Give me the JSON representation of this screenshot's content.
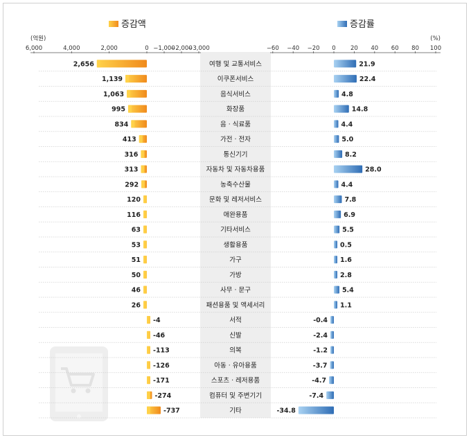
{
  "legend": {
    "left_label": "증감액",
    "right_label": "증감률",
    "left_unit": "(억원)",
    "right_unit": "(%)"
  },
  "colors": {
    "left_bar": "#f08a1c",
    "left_bar_light": "#ffd24a",
    "right_bar": "#2f6db5",
    "right_bar_light": "#a9d2f2",
    "center_band": "#eeeeee",
    "icon": "#eeeeee"
  },
  "background_icon": "shopping-cart-tablet-icon",
  "chart_data": [
    {
      "type": "bar",
      "orientation": "horizontal",
      "series": [
        {
          "name": "증감액",
          "values": [
            2656,
            1139,
            1063,
            995,
            834,
            413,
            316,
            313,
            292,
            120,
            116,
            63,
            53,
            51,
            50,
            46,
            26,
            -4,
            -46,
            -113,
            -126,
            -171,
            -274,
            -737
          ]
        }
      ],
      "value_labels": [
        "2,656",
        "1,139",
        "1,063",
        "995",
        "834",
        "413",
        "316",
        "313",
        "292",
        "120",
        "116",
        "63",
        "53",
        "51",
        "50",
        "46",
        "26",
        "-4",
        "-46",
        "-113",
        "-126",
        "-171",
        "-274",
        "-737"
      ],
      "axis": {
        "ticks": [
          6000,
          4000,
          2000,
          0,
          -1000,
          -2000,
          -3000
        ],
        "tick_labels": [
          "6,000",
          "4,000",
          "2,000",
          "0",
          "−1,000",
          "−2,000",
          "−3,000"
        ],
        "reversed": true
      }
    },
    {
      "type": "bar",
      "orientation": "horizontal",
      "series": [
        {
          "name": "증감률",
          "values": [
            21.9,
            22.4,
            4.8,
            14.8,
            4.4,
            5.0,
            8.2,
            28.0,
            4.4,
            7.8,
            6.9,
            5.5,
            0.5,
            1.6,
            2.8,
            5.4,
            1.1,
            -0.4,
            -2.4,
            -1.2,
            -3.7,
            -4.7,
            -7.4,
            -34.8
          ]
        }
      ],
      "value_labels": [
        "21.9",
        "22.4",
        "4.8",
        "14.8",
        "4.4",
        "5.0",
        "8.2",
        "28.0",
        "4.4",
        "7.8",
        "6.9",
        "5.5",
        "0.5",
        "1.6",
        "2.8",
        "5.4",
        "1.1",
        "-0.4",
        "-2.4",
        "-1.2",
        "-3.7",
        "-4.7",
        "-7.4",
        "-34.8"
      ],
      "axis": {
        "ticks": [
          -60,
          -40,
          -20,
          0,
          20,
          40,
          60,
          80,
          100
        ],
        "tick_labels": [
          "−60",
          "−40",
          "−20",
          "0",
          "20",
          "40",
          "60",
          "80",
          "100"
        ]
      }
    }
  ],
  "categories": [
    "여행 및 교통서비스",
    "이쿠폰서비스",
    "음식서비스",
    "화장품",
    "음 · 식료품",
    "가전 · 전자",
    "통신기기",
    "자동차 및 자동차용품",
    "농축수산물",
    "문화 및 레저서비스",
    "애완용품",
    "기타서비스",
    "생활용품",
    "가구",
    "가방",
    "사무 · 문구",
    "패션용품 및 액세서리",
    "서적",
    "신발",
    "의복",
    "아동 · 유아용품",
    "스포츠 · 레저용품",
    "컴퓨터 및 주변기기",
    "기타"
  ]
}
